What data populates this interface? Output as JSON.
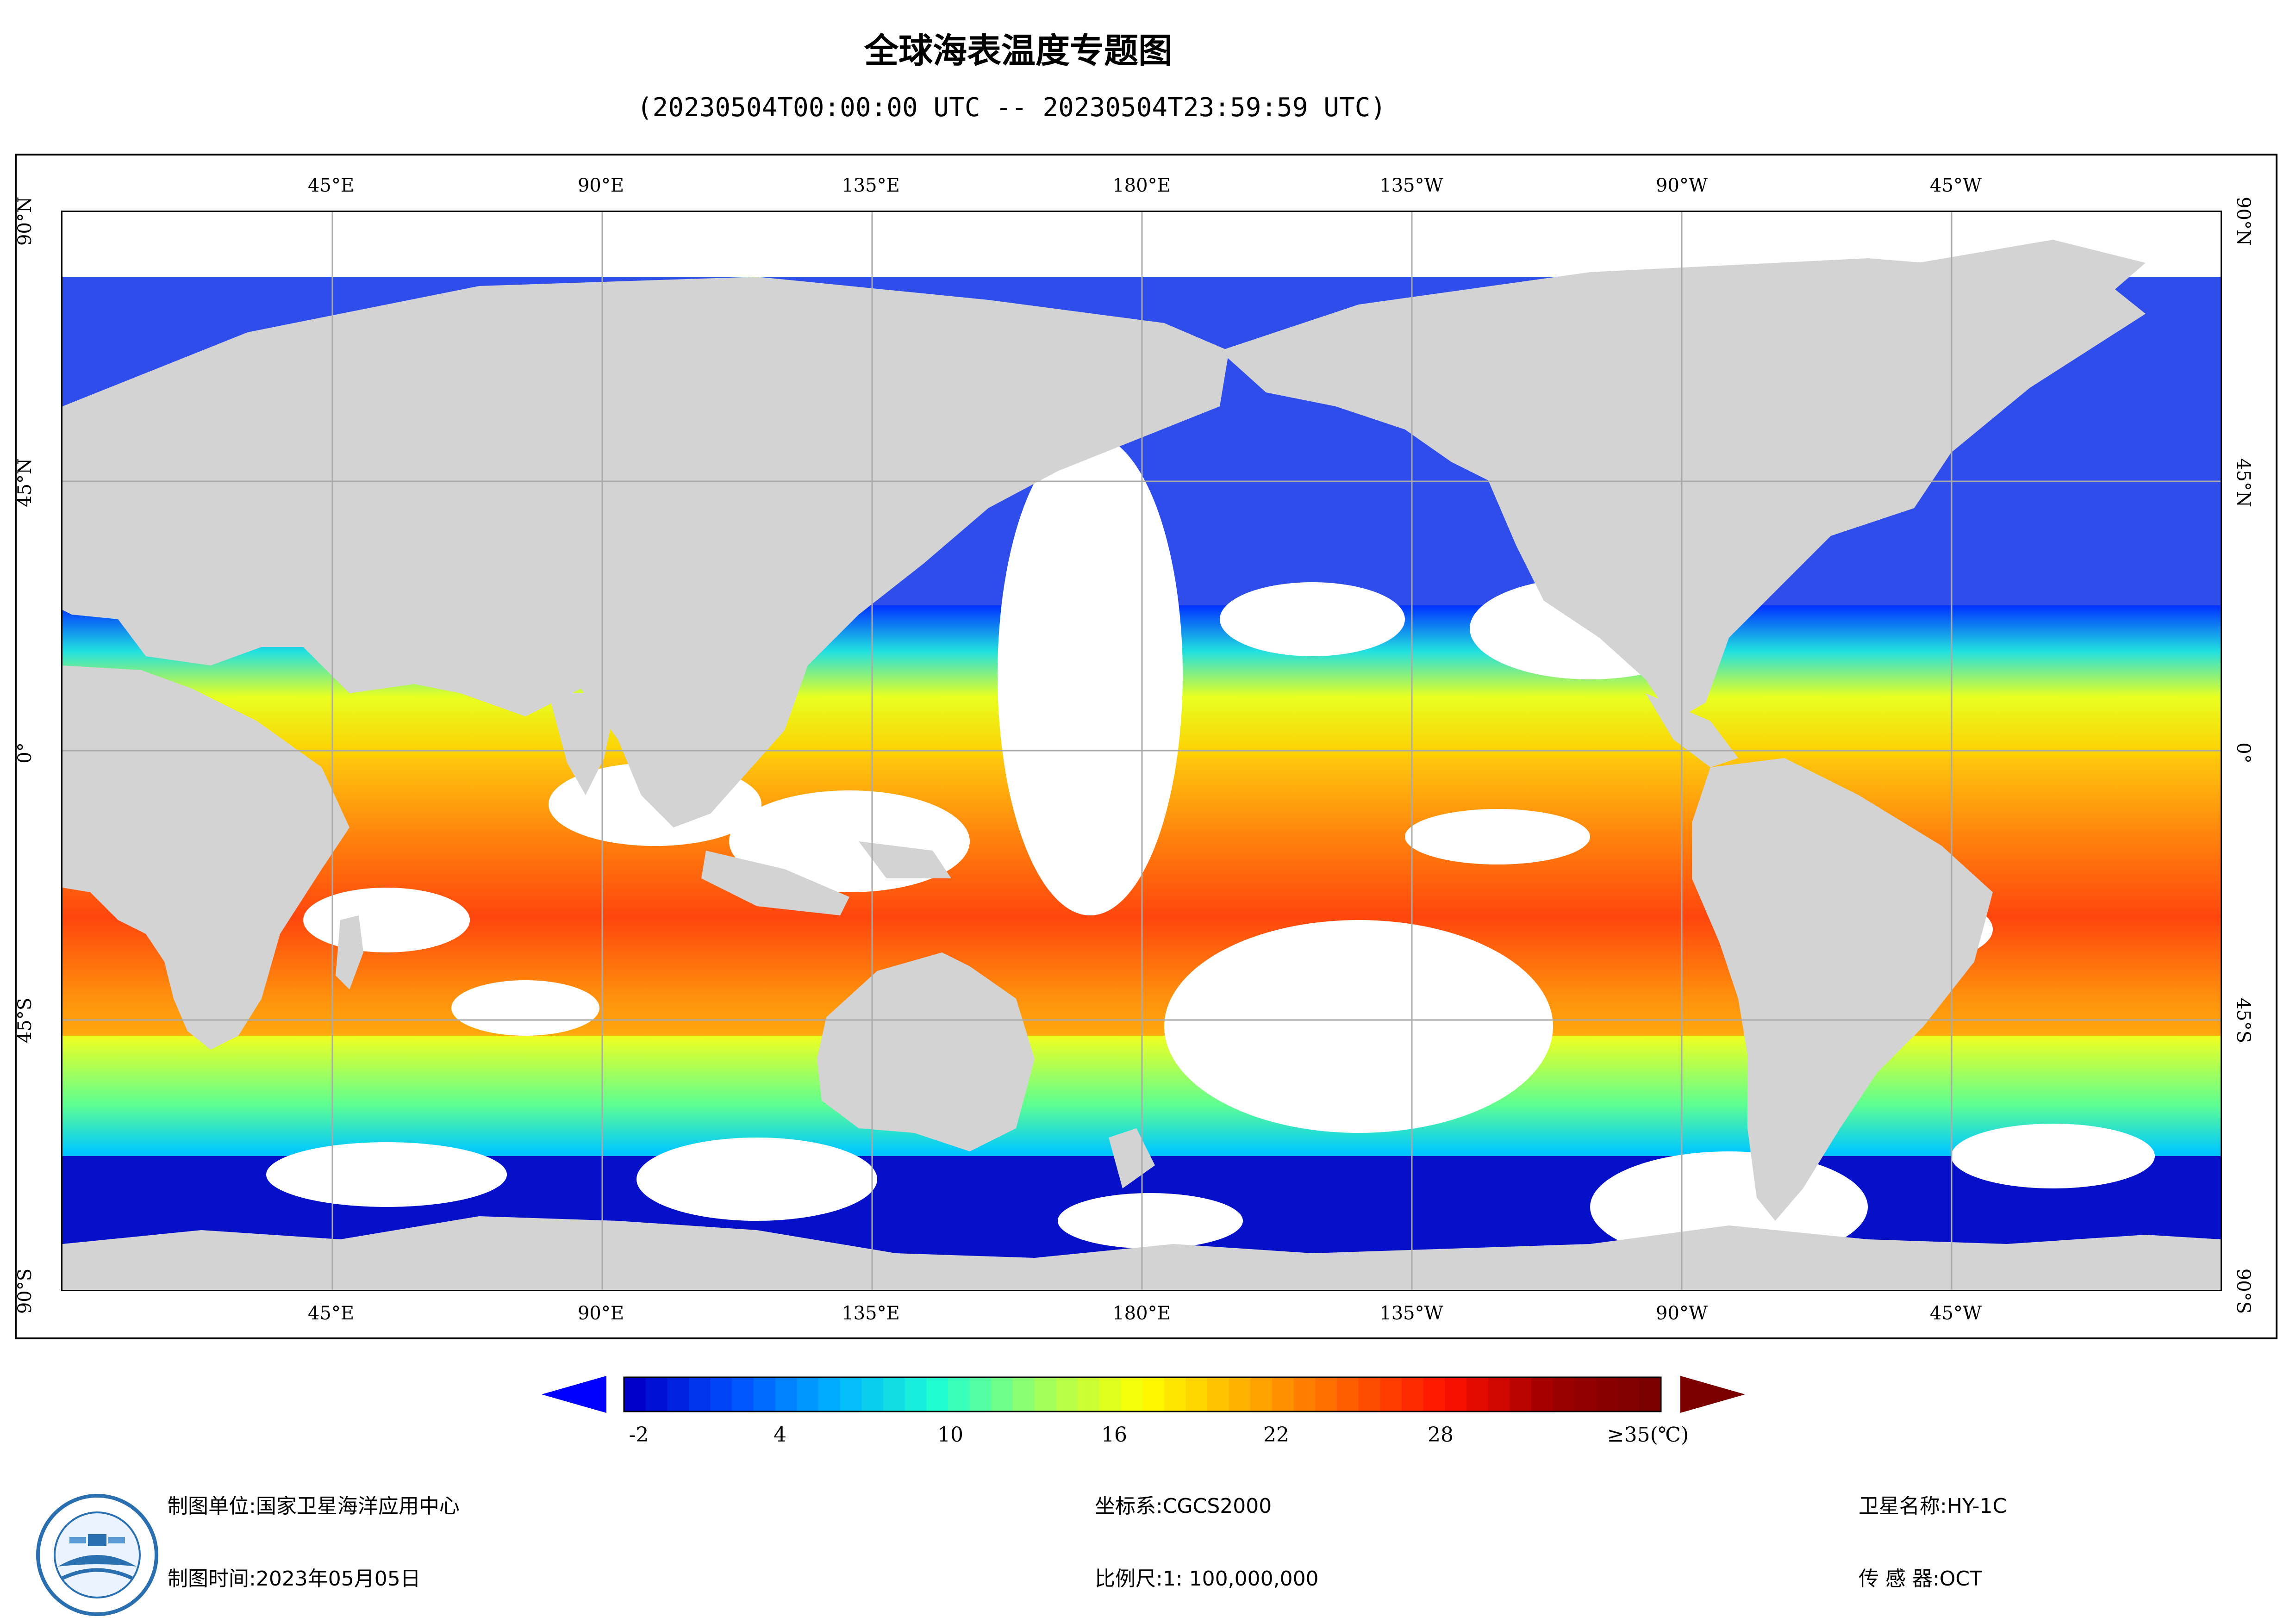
{
  "title": "全球海表温度专题图",
  "subtitle": "(20230504T00:00:00 UTC -- 20230504T23:59:59 UTC)",
  "map": {
    "projection": "Plate Carrée, centered 180°",
    "land_color": "#d3d3d3",
    "cloud_nodata_color": "#ffffff",
    "grid_color": "#aaaaaa",
    "top_ticks": [
      "45°E",
      "90°E",
      "135°E",
      "180°E",
      "135°W",
      "90°W",
      "45°W"
    ],
    "bottom_ticks": [
      "45°E",
      "90°E",
      "135°E",
      "180°E",
      "135°W",
      "90°W",
      "45°W"
    ],
    "lat_ticks": [
      "90°N",
      "45°N",
      "0°",
      "45°S",
      "90°S"
    ]
  },
  "colorbar": {
    "unit": "(℃)",
    "min": -4,
    "max": 35,
    "labels": [
      "-2",
      "4",
      "10",
      "16",
      "22",
      "28",
      "≥35(℃)"
    ],
    "colors": [
      "#0000c8",
      "#0050ff",
      "#00b4ff",
      "#20ffd0",
      "#a0ff60",
      "#ffff00",
      "#ffb000",
      "#ff6000",
      "#ff1000",
      "#a00000",
      "#7a0000"
    ]
  },
  "footer": {
    "org_label": "制图单位:",
    "org_value": "国家卫星海洋应用中心",
    "date_label": "制图时间:",
    "date_value": "2023年05月05日",
    "crs_label": "坐标系:",
    "crs_value": "CGCS2000",
    "scale_label": "比例尺:",
    "scale_value": "1: 100,000,000",
    "satellite_label": "卫星名称:",
    "satellite_value": "HY-1C",
    "sensor_label": "传 感 器:",
    "sensor_value": "OCT"
  }
}
